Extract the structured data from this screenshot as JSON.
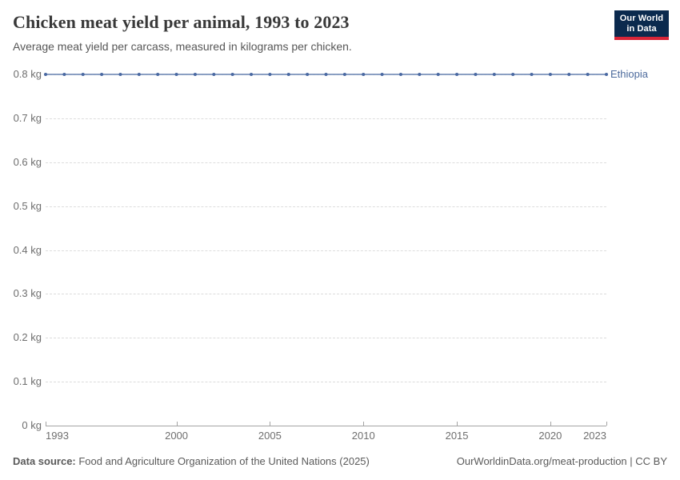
{
  "header": {
    "title": "Chicken meat yield per animal, 1993 to 2023",
    "subtitle": "Average meat yield per carcass, measured in kilograms per chicken.",
    "logo_line1": "Our World",
    "logo_line2": "in Data"
  },
  "chart_data": {
    "type": "line",
    "title": "Chicken meat yield per animal, 1993 to 2023",
    "x": [
      1993,
      1994,
      1995,
      1996,
      1997,
      1998,
      1999,
      2000,
      2001,
      2002,
      2003,
      2004,
      2005,
      2006,
      2007,
      2008,
      2009,
      2010,
      2011,
      2012,
      2013,
      2014,
      2015,
      2016,
      2017,
      2018,
      2019,
      2020,
      2021,
      2022,
      2023
    ],
    "series": [
      {
        "name": "Ethiopia",
        "color": "#7b93bb",
        "marker_color": "#4a69a2",
        "label_color": "#4c6a9c",
        "values": [
          0.8,
          0.8,
          0.8,
          0.8,
          0.8,
          0.8,
          0.8,
          0.8,
          0.8,
          0.8,
          0.8,
          0.8,
          0.8,
          0.8,
          0.8,
          0.8,
          0.8,
          0.8,
          0.8,
          0.8,
          0.8,
          0.8,
          0.8,
          0.8,
          0.8,
          0.8,
          0.8,
          0.8,
          0.8,
          0.8,
          0.8
        ]
      }
    ],
    "xlim": [
      1993,
      2023
    ],
    "ylim": [
      0,
      0.8
    ],
    "x_tick_values": [
      1993,
      2000,
      2005,
      2010,
      2015,
      2020,
      2023
    ],
    "x_tick_labels": [
      "1993",
      "2000",
      "2005",
      "2010",
      "2015",
      "2020",
      "2023"
    ],
    "y_tick_values": [
      0,
      0.1,
      0.2,
      0.3,
      0.4,
      0.5,
      0.6,
      0.7,
      0.8
    ],
    "y_tick_labels": [
      "0 kg",
      "0.1 kg",
      "0.2 kg",
      "0.3 kg",
      "0.4 kg",
      "0.5 kg",
      "0.6 kg",
      "0.7 kg",
      "0.8 kg"
    ],
    "grid": true,
    "legend_position": "end-of-line",
    "entity_label": "Ethiopia",
    "unit": "kg"
  },
  "footer": {
    "source_label": "Data source:",
    "source_text": " Food and Agriculture Organization of the United Nations (2025)",
    "credit": "OurWorldinData.org/meat-production | CC BY"
  }
}
